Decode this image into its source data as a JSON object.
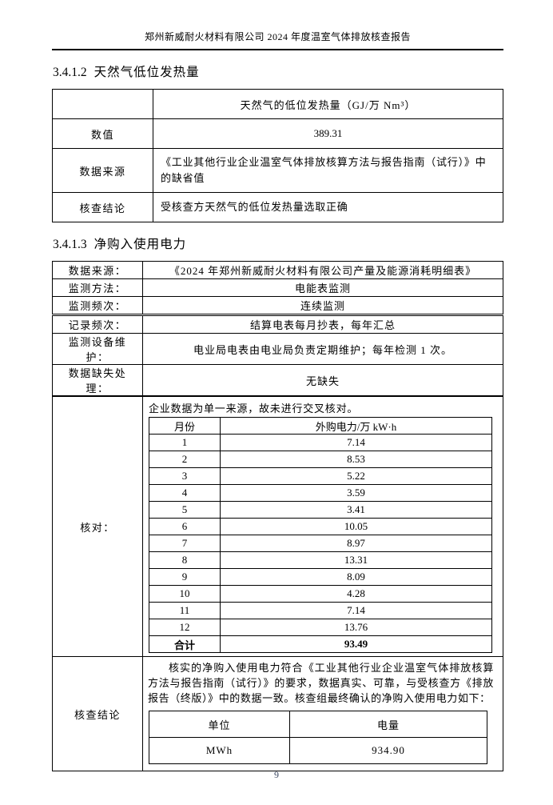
{
  "header": {
    "title": "郑州新威耐火材料有限公司 2024 年度温室气体排放核查报告"
  },
  "s1": {
    "heading_num": "3.4.1.2",
    "heading_title": "天然气低位发热量",
    "col_header": "天然气的低位发热量（GJ/万 Nm³）",
    "rows": [
      {
        "label": "数值",
        "value": "389.31"
      },
      {
        "label": "数据来源",
        "value": "《工业其他行业企业温室气体排放核算方法与报告指南（试行）》中的缺省值"
      },
      {
        "label": "核查结论",
        "value": "受核查方天然气的低位发热量选取正确"
      }
    ]
  },
  "s2": {
    "heading_num": "3.4.1.3",
    "heading_title": "净购入使用电力",
    "info_rows": [
      {
        "label": "数据来源：",
        "value": "《2024 年郑州新威耐火材料有限公司产量及能源消耗明细表》"
      },
      {
        "label": "监测方法：",
        "value": "电能表监测"
      },
      {
        "label": "监测频次：",
        "value": "连续监测"
      },
      {
        "label": "记录频次：",
        "value": "结算电表每月抄表，每年汇总"
      },
      {
        "label": "监测设备维护：",
        "value": "电业局电表由电业局负责定期维护；每年检测 1 次。"
      },
      {
        "label": "数据缺失处理：",
        "value": "无缺失"
      }
    ],
    "check": {
      "label": "核对：",
      "note": "企业数据为单一来源，故未进行交叉核对。",
      "months_header": {
        "month": "月份",
        "power": "外购电力/万 kW·h"
      },
      "months": [
        {
          "m": "1",
          "v": "7.14"
        },
        {
          "m": "2",
          "v": "8.53"
        },
        {
          "m": "3",
          "v": "5.22"
        },
        {
          "m": "4",
          "v": "3.59"
        },
        {
          "m": "5",
          "v": "3.41"
        },
        {
          "m": "6",
          "v": "10.05"
        },
        {
          "m": "7",
          "v": "8.97"
        },
        {
          "m": "8",
          "v": "13.31"
        },
        {
          "m": "9",
          "v": "8.09"
        },
        {
          "m": "10",
          "v": "4.28"
        },
        {
          "m": "11",
          "v": "7.14"
        },
        {
          "m": "12",
          "v": "13.76"
        }
      ],
      "total": {
        "label": "合计",
        "value": "93.49"
      }
    },
    "conclusion": {
      "label": "核查结论",
      "text": "核实的净购入使用电力符合《工业其他行业企业温室气体排放核算方法与报告指南（试行）》的要求，数据真实、可靠，与受核查方《排放报告（终版）》中的数据一致。核查组最终确认的净购入使用电力如下：",
      "sum_header": {
        "unit": "单位",
        "amount": "电量"
      },
      "sum_row": {
        "unit": "MWh",
        "amount": "934.90"
      }
    }
  },
  "footer": {
    "page_number": "9"
  }
}
